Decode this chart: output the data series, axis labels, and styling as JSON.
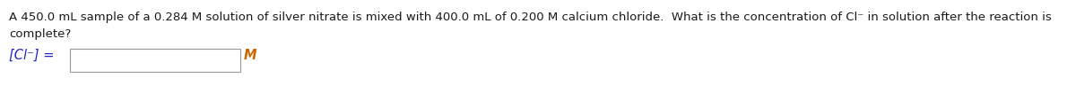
{
  "line1": "A 450.0 mL sample of a 0.284 M solution of silver nitrate is mixed with 400.0 mL of 0.200 M calcium chloride.  What is the concentration of Cl⁻ in solution after the reaction is",
  "line2": "complete?",
  "label": "[Cl⁻] =",
  "unit": "M",
  "bg_color": "#ffffff",
  "text_color": "#1a1a1a",
  "label_color": "#2222cc",
  "unit_color": "#cc6600",
  "fontsize_main": 9.5,
  "fontsize_label": 10.5,
  "figwidth": 12.0,
  "figheight": 0.97,
  "dpi": 100
}
